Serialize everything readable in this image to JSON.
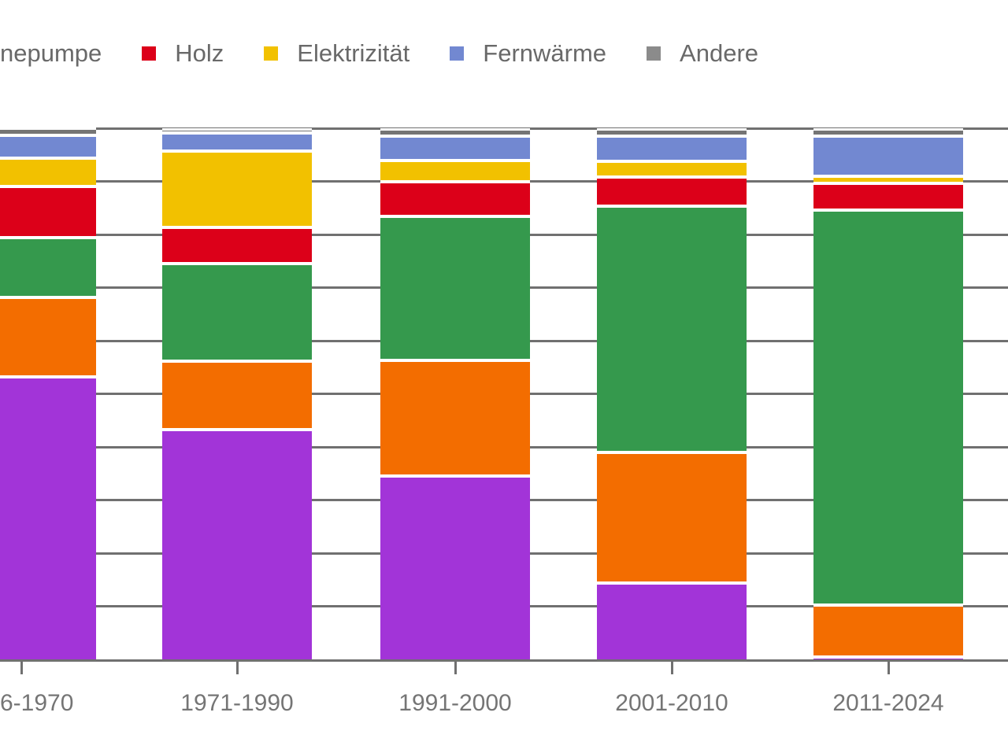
{
  "colors": {
    "background": "#ffffff",
    "gridline": "#707070",
    "axis_text": "#757575",
    "legend_text": "#696969"
  },
  "legend": {
    "items": [
      {
        "label": "nepumpe",
        "swatch_color": null
      },
      {
        "label": "Holz",
        "swatch_color": "#dc0019"
      },
      {
        "label": "Elektrizität",
        "swatch_color": "#f2c100"
      },
      {
        "label": "Fernwärme",
        "swatch_color": "#7288d1"
      },
      {
        "label": "Andere",
        "swatch_color": "#8b8b8b"
      }
    ]
  },
  "chart_data": {
    "type": "bar",
    "stacked": true,
    "unit": "percent",
    "title": "",
    "xlabel": "",
    "ylabel": "",
    "ylim": [
      0,
      100
    ],
    "grid": "horizontal",
    "gridline_step_pct": 10,
    "legend_position": "top",
    "categories": [
      "6-1970",
      "1971-1990",
      "1991-2000",
      "2001-2010",
      "2011-2024"
    ],
    "series": [
      {
        "legend_label": "",
        "color_name": "purple",
        "color": "#a234d8",
        "stack_order_from_bottom": 1,
        "values": [
          53.4,
          43.5,
          34.8,
          14.7,
          0.8
        ]
      },
      {
        "legend_label": "",
        "color_name": "orange",
        "color": "#f36d00",
        "stack_order_from_bottom": 2,
        "values": [
          15.0,
          12.9,
          21.8,
          24.5,
          9.7
        ]
      },
      {
        "legend_label": "nepumpe",
        "color_name": "green",
        "color": "#35994d",
        "stack_order_from_bottom": 3,
        "values": [
          11.2,
          18.3,
          27.1,
          46.4,
          74.3
        ]
      },
      {
        "legend_label": "Holz",
        "color_name": "red",
        "color": "#dc0019",
        "stack_order_from_bottom": 4,
        "values": [
          9.7,
          6.9,
          6.4,
          5.5,
          5.1
        ]
      },
      {
        "legend_label": "Elektrizität",
        "color_name": "yellow",
        "color": "#f2c100",
        "stack_order_from_bottom": 5,
        "values": [
          5.3,
          14.4,
          4.0,
          2.9,
          1.3
        ]
      },
      {
        "legend_label": "Fernwärme",
        "color_name": "blue",
        "color": "#7288d1",
        "stack_order_from_bottom": 6,
        "values": [
          4.3,
          3.3,
          4.7,
          4.7,
          7.5
        ]
      },
      {
        "legend_label": "Andere",
        "color_name": "gray",
        "color": "#757575",
        "stack_order_from_bottom": 7,
        "values": [
          1.2,
          0.7,
          1.2,
          1.3,
          1.3
        ]
      }
    ]
  }
}
